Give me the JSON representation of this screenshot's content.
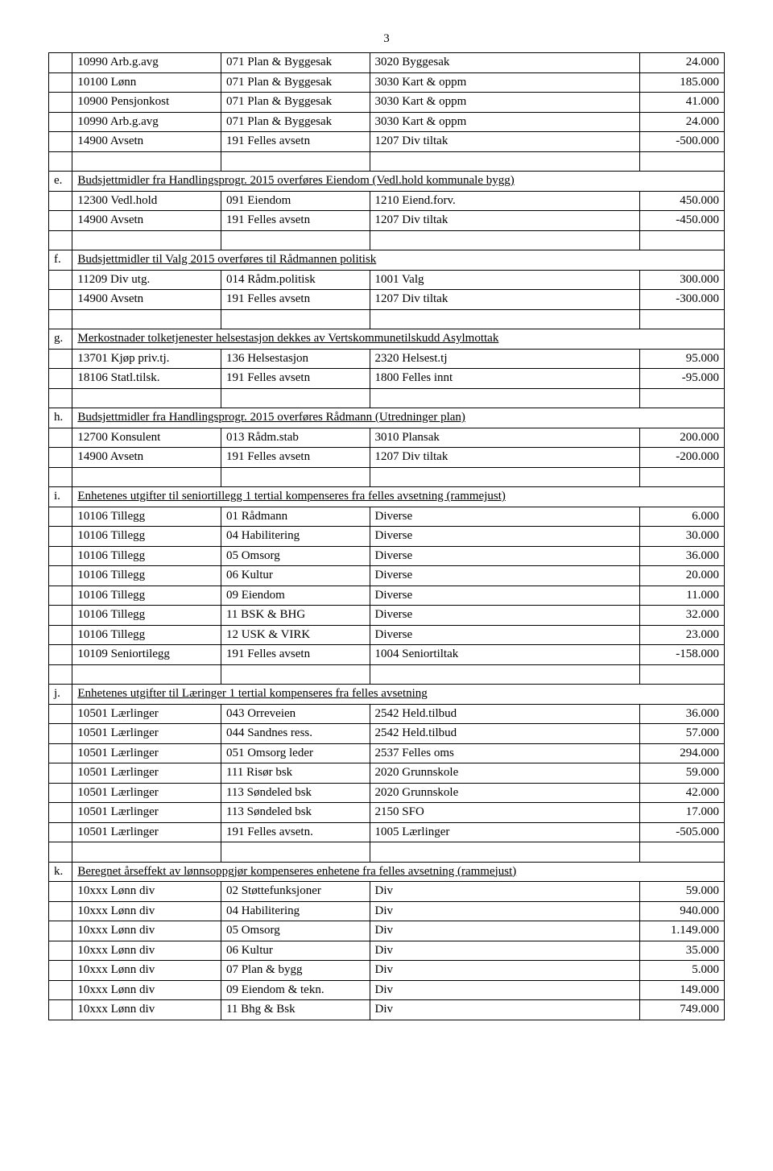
{
  "page_number": "3",
  "rows": [
    {
      "t": "d",
      "c": [
        "",
        "10990 Arb.g.avg",
        "071 Plan & Byggesak",
        "3020 Byggesak",
        "24.000"
      ]
    },
    {
      "t": "d",
      "c": [
        "",
        "10100 Lønn",
        "071 Plan & Byggesak",
        "3030 Kart & oppm",
        "185.000"
      ]
    },
    {
      "t": "d",
      "c": [
        "",
        "10900 Pensjonkost",
        "071 Plan & Byggesak",
        "3030 Kart & oppm",
        "41.000"
      ]
    },
    {
      "t": "d",
      "c": [
        "",
        "10990 Arb.g.avg",
        "071 Plan & Byggesak",
        "3030 Kart & oppm",
        "24.000"
      ]
    },
    {
      "t": "d",
      "c": [
        "",
        "14900 Avsetn",
        "191 Felles avsetn",
        "1207 Div tiltak",
        "-500.000"
      ]
    },
    {
      "t": "e"
    },
    {
      "t": "h",
      "letter": "e.",
      "text": "Budsjettmidler fra Handlingsprogr. 2015 overføres Eiendom (Vedl.hold kommunale bygg)"
    },
    {
      "t": "d",
      "c": [
        "",
        "12300 Vedl.hold",
        "091 Eiendom",
        "1210 Eiend.forv.",
        "450.000"
      ]
    },
    {
      "t": "d",
      "c": [
        "",
        "14900 Avsetn",
        "191 Felles avsetn",
        "1207 Div tiltak",
        "-450.000"
      ]
    },
    {
      "t": "e"
    },
    {
      "t": "h",
      "letter": "f.",
      "text": "Budsjettmidler til Valg 2015 overføres til Rådmannen politisk"
    },
    {
      "t": "d",
      "c": [
        "",
        "11209 Div utg.",
        "014 Rådm.politisk",
        "1001 Valg",
        "300.000"
      ]
    },
    {
      "t": "d",
      "c": [
        "",
        "14900 Avsetn",
        "191 Felles avsetn",
        "1207 Div tiltak",
        "-300.000"
      ]
    },
    {
      "t": "e"
    },
    {
      "t": "h",
      "letter": "g.",
      "text": "Merkostnader tolketjenester helsestasjon dekkes av Vertskommunetilskudd Asylmottak"
    },
    {
      "t": "d",
      "c": [
        "",
        "13701 Kjøp priv.tj.",
        "136 Helsestasjon",
        "2320 Helsest.tj",
        "95.000"
      ]
    },
    {
      "t": "d",
      "c": [
        "",
        "18106 Statl.tilsk.",
        "191 Felles avsetn",
        "1800 Felles innt",
        "-95.000"
      ]
    },
    {
      "t": "e"
    },
    {
      "t": "h",
      "letter": "h.",
      "text": "Budsjettmidler fra Handlingsprogr. 2015 overføres Rådmann (Utredninger plan)"
    },
    {
      "t": "d",
      "c": [
        "",
        "12700 Konsulent",
        "013 Rådm.stab",
        "3010 Plansak",
        "200.000"
      ]
    },
    {
      "t": "d",
      "c": [
        "",
        "14900 Avsetn",
        "191 Felles avsetn",
        "1207 Div tiltak",
        "-200.000"
      ]
    },
    {
      "t": "e"
    },
    {
      "t": "h",
      "letter": "i.",
      "text": "Enhetenes utgifter til seniortillegg 1 tertial kompenseres fra felles avsetning (rammejust)"
    },
    {
      "t": "d",
      "c": [
        "",
        "10106 Tillegg",
        "01 Rådmann",
        "Diverse",
        "6.000"
      ]
    },
    {
      "t": "d",
      "c": [
        "",
        "10106 Tillegg",
        "04 Habilitering",
        "Diverse",
        "30.000"
      ]
    },
    {
      "t": "d",
      "c": [
        "",
        "10106 Tillegg",
        "05 Omsorg",
        "Diverse",
        "36.000"
      ]
    },
    {
      "t": "d",
      "c": [
        "",
        "10106 Tillegg",
        "06 Kultur",
        "Diverse",
        "20.000"
      ]
    },
    {
      "t": "d",
      "c": [
        "",
        "10106 Tillegg",
        "09 Eiendom",
        "Diverse",
        "11.000"
      ]
    },
    {
      "t": "d",
      "c": [
        "",
        "10106 Tillegg",
        "11 BSK & BHG",
        "Diverse",
        "32.000"
      ]
    },
    {
      "t": "d",
      "c": [
        "",
        "10106 Tillegg",
        "12 USK & VIRK",
        "Diverse",
        "23.000"
      ]
    },
    {
      "t": "d",
      "c": [
        "",
        "10109 Seniortilegg",
        "191 Felles avsetn",
        "1004 Seniortiltak",
        "-158.000"
      ]
    },
    {
      "t": "e"
    },
    {
      "t": "h",
      "letter": "j.",
      "text": "Enhetenes utgifter til Læringer 1 tertial kompenseres fra felles avsetning"
    },
    {
      "t": "d",
      "c": [
        "",
        "10501 Lærlinger",
        "043 Orreveien",
        "2542 Held.tilbud",
        "36.000"
      ]
    },
    {
      "t": "d",
      "c": [
        "",
        "10501 Lærlinger",
        "044 Sandnes ress.",
        "2542 Held.tilbud",
        "57.000"
      ]
    },
    {
      "t": "d",
      "c": [
        "",
        "10501 Lærlinger",
        "051 Omsorg leder",
        "2537 Felles oms",
        "294.000"
      ]
    },
    {
      "t": "d",
      "c": [
        "",
        "10501 Lærlinger",
        "111 Risør bsk",
        "2020 Grunnskole",
        "59.000"
      ]
    },
    {
      "t": "d",
      "c": [
        "",
        "10501 Lærlinger",
        "113 Søndeled bsk",
        "2020 Grunnskole",
        "42.000"
      ]
    },
    {
      "t": "d",
      "c": [
        "",
        "10501 Lærlinger",
        "113 Søndeled bsk",
        "2150 SFO",
        "17.000"
      ]
    },
    {
      "t": "d",
      "c": [
        "",
        "10501 Lærlinger",
        "191 Felles avsetn.",
        "1005 Lærlinger",
        "-505.000"
      ]
    },
    {
      "t": "e"
    },
    {
      "t": "h",
      "letter": "k.",
      "text": "Beregnet årseffekt av lønnsoppgjør kompenseres enhetene fra felles avsetning (rammejust)"
    },
    {
      "t": "d",
      "c": [
        "",
        "10xxx Lønn div",
        "02 Støttefunksjoner",
        "Div",
        "59.000"
      ]
    },
    {
      "t": "d",
      "c": [
        "",
        "10xxx Lønn div",
        "04 Habilitering",
        "Div",
        "940.000"
      ]
    },
    {
      "t": "d",
      "c": [
        "",
        "10xxx Lønn div",
        "05 Omsorg",
        "Div",
        "1.149.000"
      ]
    },
    {
      "t": "d",
      "c": [
        "",
        "10xxx Lønn div",
        "06 Kultur",
        "Div",
        "35.000"
      ]
    },
    {
      "t": "d",
      "c": [
        "",
        "10xxx Lønn div",
        "07 Plan & bygg",
        "Div",
        "5.000"
      ]
    },
    {
      "t": "d",
      "c": [
        "",
        "10xxx Lønn div",
        "09 Eiendom & tekn.",
        "Div",
        "149.000"
      ]
    },
    {
      "t": "d",
      "c": [
        "",
        "10xxx Lønn div",
        "11 Bhg & Bsk",
        "Div",
        "749.000"
      ]
    }
  ]
}
